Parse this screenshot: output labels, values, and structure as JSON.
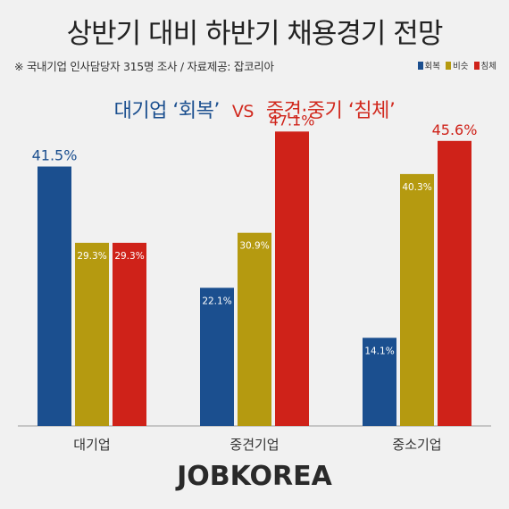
{
  "title": "상반기 대비 하반기 채용경기 전망",
  "source": "※ 국내기업 인사담당자 315명 조사 / 자료제공: 잡코리아",
  "subtitle": {
    "left": "대기업 ‘회복’",
    "vs": "VS",
    "right": "중견·중기 ‘침체’"
  },
  "brand": "JOBKOREA",
  "colors": {
    "recovery": "#1b4f8f",
    "similar": "#b59a10",
    "slump": "#cf2219"
  },
  "chart_data": {
    "type": "bar",
    "categories": [
      "대기업",
      "중견기업",
      "중소기업"
    ],
    "series": [
      {
        "name": "회복",
        "values": [
          41.5,
          22.1,
          14.1
        ]
      },
      {
        "name": "비슷",
        "values": [
          29.3,
          30.9,
          40.3
        ]
      },
      {
        "name": "침체",
        "values": [
          29.3,
          47.1,
          45.6
        ]
      }
    ],
    "ylim": [
      0,
      50
    ],
    "value_suffix": "%",
    "legend_position": "top-right",
    "grid": false
  }
}
